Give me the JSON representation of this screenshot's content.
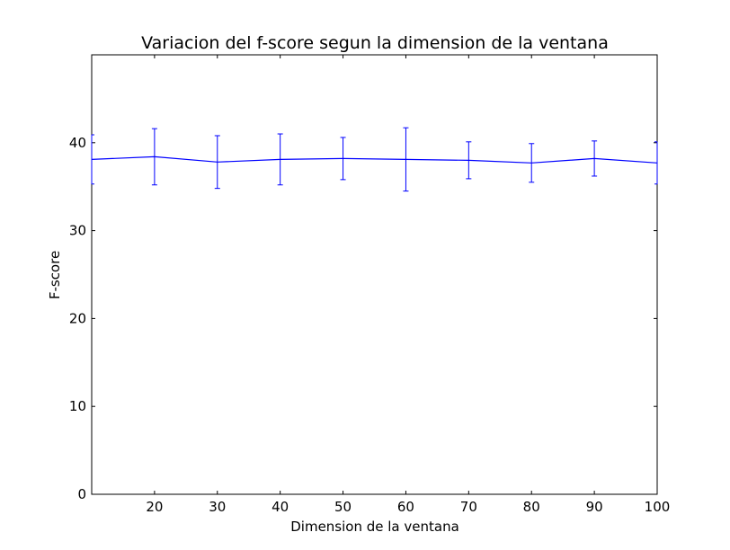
{
  "chart_data": {
    "type": "line",
    "title": "Variacion del f-score segun la dimension de la ventana",
    "xlabel": "Dimension de la ventana",
    "ylabel": "F-score",
    "xlim": [
      10,
      100
    ],
    "ylim": [
      0,
      50
    ],
    "xticks": [
      20,
      30,
      40,
      50,
      60,
      70,
      80,
      90,
      100
    ],
    "yticks": [
      0,
      10,
      20,
      30,
      40
    ],
    "grid": false,
    "color": "#0000ff",
    "series": [
      {
        "x": [
          10,
          20,
          30,
          40,
          50,
          60,
          70,
          80,
          90,
          100
        ],
        "y": [
          38.1,
          38.4,
          37.8,
          38.1,
          38.2,
          38.1,
          38.0,
          37.7,
          38.2,
          37.7
        ],
        "error": [
          2.8,
          3.2,
          3.0,
          2.9,
          2.4,
          3.6,
          2.1,
          2.2,
          2.0,
          2.4
        ]
      }
    ]
  }
}
